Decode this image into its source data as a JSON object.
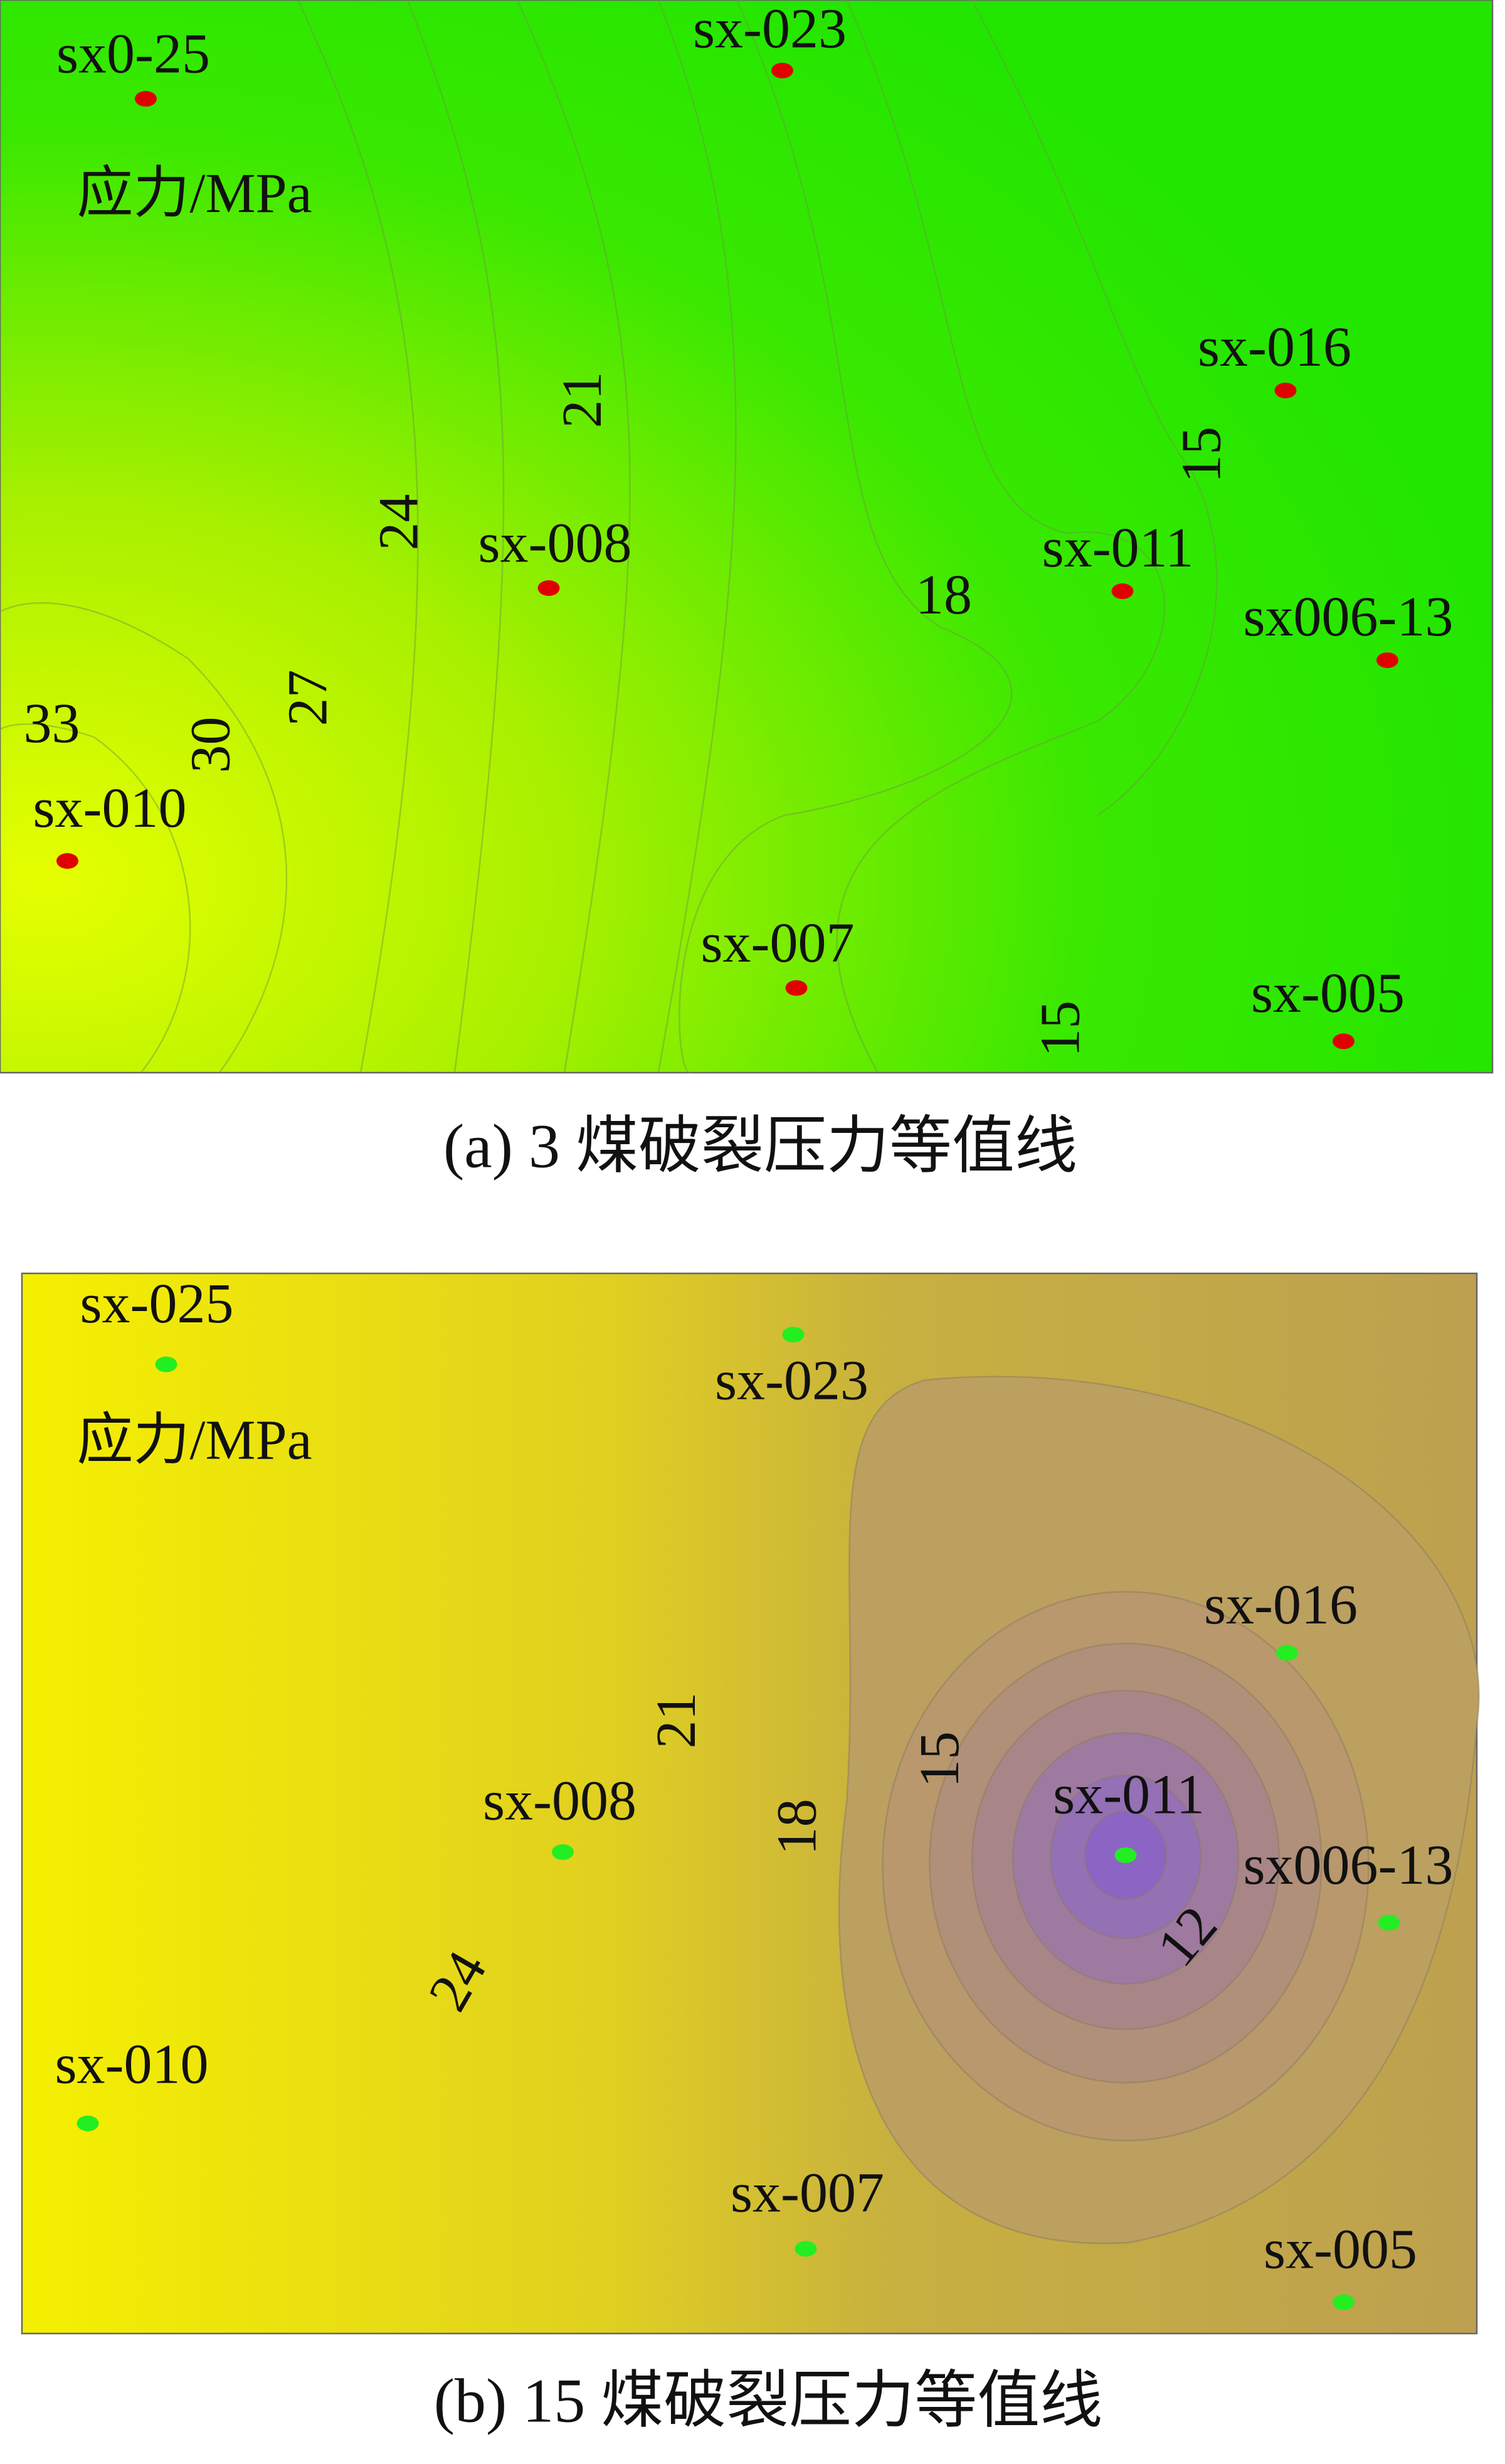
{
  "panels": [
    {
      "caption": "(a)  3 煤破裂压力等值线",
      "unit_label": "应力/MPa",
      "wells": [
        "sx0-25",
        "sx-023",
        "sx-016",
        "sx-008",
        "sx-011",
        "sx006-13",
        "sx-010",
        "sx-007",
        "sx-005"
      ],
      "contour_labels": [
        21,
        15,
        24,
        18,
        33,
        30,
        27,
        15
      ]
    },
    {
      "caption": "(b)  15 煤破裂压力等值线",
      "unit_label": "应力/MPa",
      "wells": [
        "sx-025",
        "sx-023",
        "sx-016",
        "sx-008",
        "sx-011",
        "sx006-13",
        "sx-010",
        "sx-007",
        "sx-005"
      ],
      "contour_labels": [
        21,
        15,
        18,
        24,
        12
      ]
    }
  ]
}
